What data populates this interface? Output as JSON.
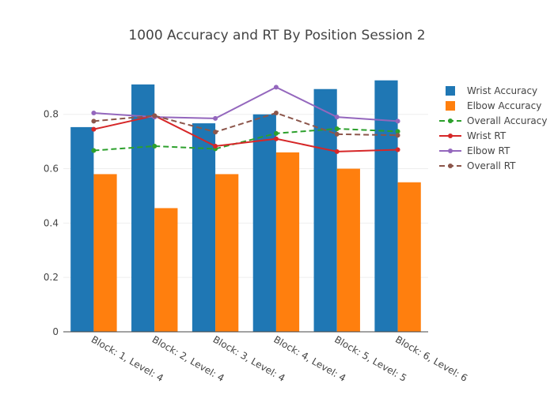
{
  "chart_data": {
    "type": "bar",
    "title": "1000 Accuracy and RT By Position Session 2",
    "xlabel": "",
    "ylabel": "",
    "categories": [
      "Block: 1, Level: 4",
      "Block: 2, Level: 4",
      "Block: 3, Level: 4",
      "Block: 4, Level: 4",
      "Block: 5, Level: 5",
      "Block: 6, Level: 6"
    ],
    "ylim": [
      0,
      0.93
    ],
    "yticks": [
      0,
      0.2,
      0.4,
      0.6,
      0.8
    ],
    "ytick_labels": [
      "0",
      "0.2",
      "0.4",
      "0.6",
      "0.8"
    ],
    "grid": true,
    "legend_position": "top-right",
    "bar_series": [
      {
        "name": "Wrist Accuracy",
        "color": "#1f77b4",
        "values": [
          0.753,
          0.91,
          0.767,
          0.8,
          0.893,
          0.925
        ]
      },
      {
        "name": "Elbow Accuracy",
        "color": "#ff7f0e",
        "values": [
          0.58,
          0.455,
          0.58,
          0.66,
          0.6,
          0.55
        ]
      }
    ],
    "line_series": [
      {
        "name": "Overall Accuracy",
        "color": "#2ca02c",
        "dash": true,
        "values": [
          0.667,
          0.683,
          0.673,
          0.73,
          0.747,
          0.737
        ]
      },
      {
        "name": "Wrist RT",
        "color": "#d62728",
        "dash": false,
        "values": [
          0.745,
          0.795,
          0.683,
          0.71,
          0.663,
          0.67
        ]
      },
      {
        "name": "Elbow RT",
        "color": "#9467bd",
        "dash": false,
        "values": [
          0.805,
          0.79,
          0.785,
          0.9,
          0.79,
          0.775
        ]
      },
      {
        "name": "Overall RT",
        "color": "#8c564b",
        "dash": true,
        "values": [
          0.775,
          0.795,
          0.735,
          0.805,
          0.727,
          0.723
        ]
      }
    ]
  }
}
